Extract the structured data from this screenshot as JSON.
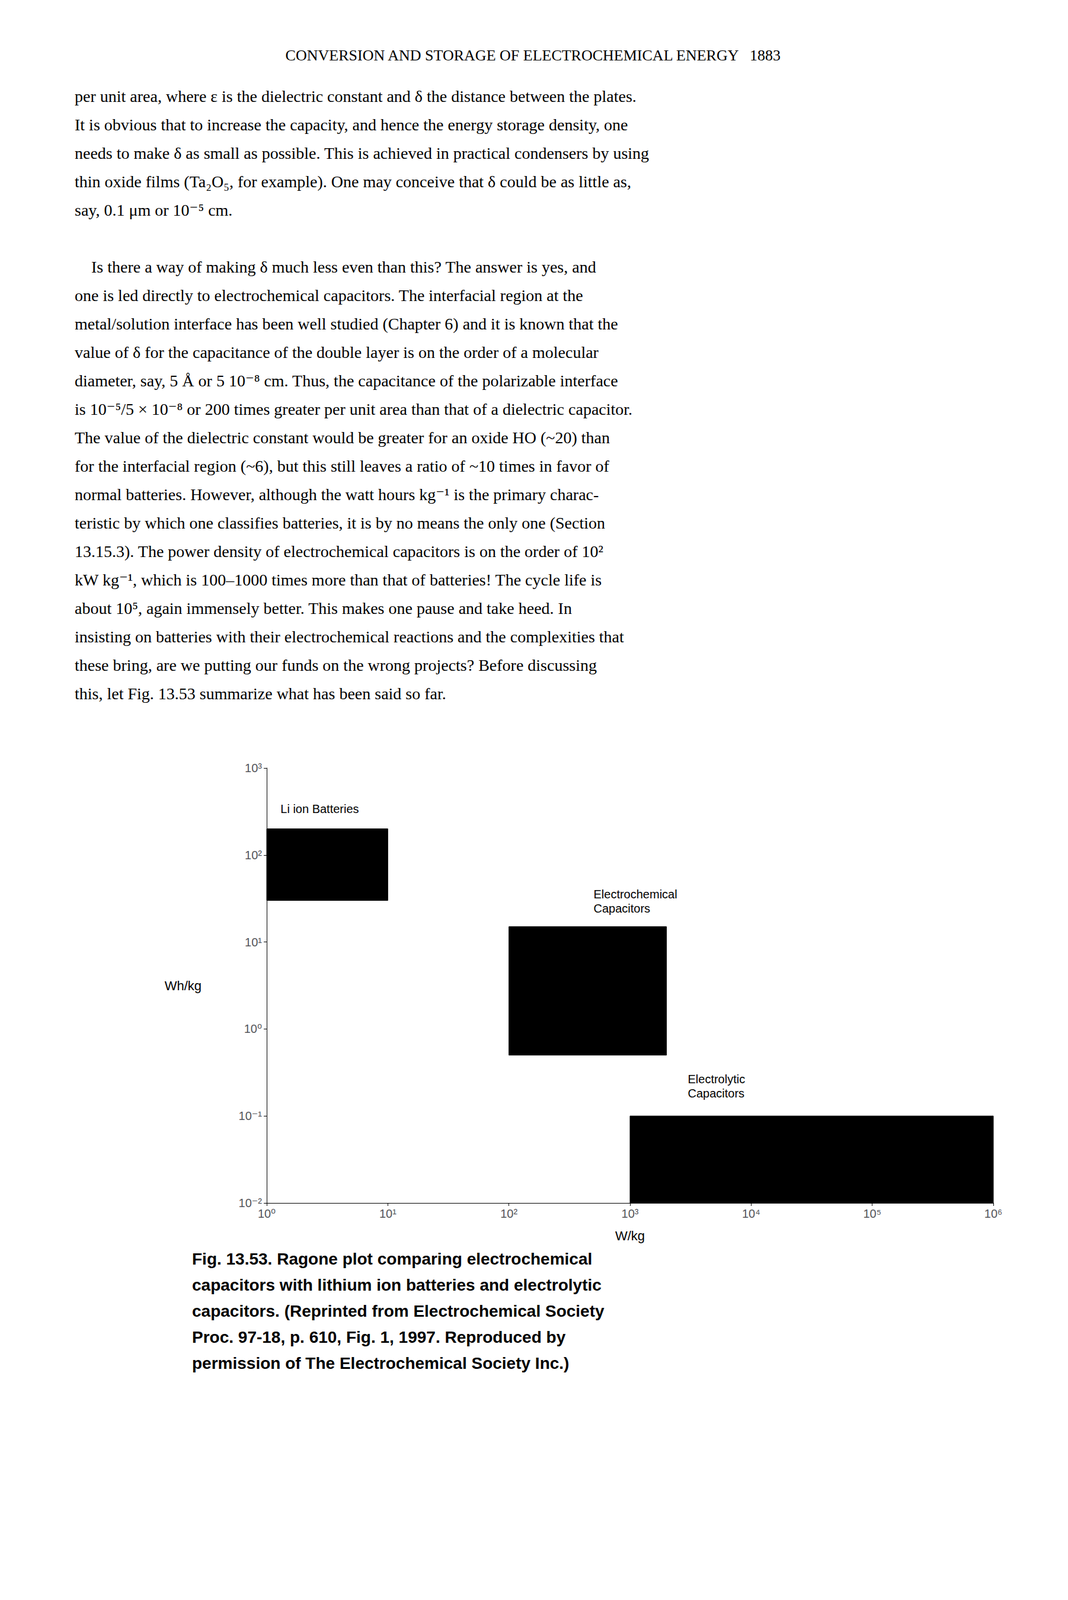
{
  "chart_data": {
    "type": "ragone",
    "header": "CONVERSION AND STORAGE OF ELECTROCHEMICAL ENERGY   1883",
    "body_text": [
      [
        "per unit area, where ε is the dielectric constant and δ the distance between the plates.",
        "It is obvious that to increase the capacity, and hence the energy storage density, one",
        "needs to make δ as small as possible. This is achieved in practical condensers by using",
        "thin oxide films (Ta₂O₅, for example). One may conceive that δ could be as little as,",
        "say, 0.1 μm or 10⁻⁵ cm."
      ],
      [
        "    Is there a way of making δ much less even than this? The answer is yes, and",
        "one is led directly to electrochemical capacitors. The interfacial region at the",
        "metal/solution interface has been well studied (Chapter 6) and it is known that the",
        "value of δ for the capacitance of the double layer is on the order of a molecular",
        "diameter, say, 5 Å or 5 10⁻⁸ cm. Thus, the capacitance of the polarizable interface",
        "is 10⁻⁵/5 × 10⁻⁸ or 200 times greater per unit area than that of a dielectric capacitor.",
        "The value of the dielectric constant would be greater for an oxide HO (~20) than",
        "for the interfacial region (~6), but this still leaves a ratio of ~10 times in favor of",
        "normal batteries. However, although the watt hours kg⁻¹ is the primary charac-",
        "teristic by which one classifies batteries, it is by no means the only one (Section",
        "13.15.3). The power density of electrochemical capacitors is on the order of 10²",
        "kW kg⁻¹, which is 100–1000 times more than that of batteries! The cycle life is",
        "about 10⁵, again immensely better. This makes one pause and take heed. In",
        "insisting on batteries with their electrochemical reactions and the complexities that",
        "these bring, are we putting our funds on the wrong projects? Before discussing",
        "this, let Fig. 13.53 summarize what has been said so far."
      ]
    ],
    "xlabel": "W/kg",
    "ylabel": "Wh/kg",
    "log": true,
    "grid": false,
    "xlim": [
      1,
      1000000
    ],
    "ylim": [
      0.01,
      1000
    ],
    "xticks": [
      {
        "value": 1,
        "label": "10⁰"
      },
      {
        "value": 10,
        "label": "10¹"
      },
      {
        "value": 100,
        "label": "10²"
      },
      {
        "value": 1000,
        "label": "10³"
      },
      {
        "value": 10000,
        "label": "10⁴"
      },
      {
        "value": 100000,
        "label": "10⁵"
      },
      {
        "value": 1000000,
        "label": "10⁶"
      }
    ],
    "yticks": [
      {
        "value": 0.01,
        "label": "10⁻²"
      },
      {
        "value": 0.1,
        "label": "10⁻¹"
      },
      {
        "value": 1,
        "label": "10⁰"
      },
      {
        "value": 10,
        "label": "10¹"
      },
      {
        "value": 100,
        "label": "10²"
      },
      {
        "value": 1000,
        "label": "10³"
      }
    ],
    "regions": [
      {
        "label": "Li ion Batteries",
        "x_min": 1,
        "x_max": 10,
        "y_min": 30,
        "y_max": 200,
        "color": "#000000",
        "label_x": 1.3,
        "label_y": 280
      },
      {
        "label": "Electrochemical\nCapacitors",
        "x_min": 100,
        "x_max": 2000,
        "y_min": 0.5,
        "y_max": 15,
        "color": "#000000",
        "label_x": 500,
        "label_y": 20
      },
      {
        "label": "Electrolytic\nCapacitors",
        "x_min": 1000,
        "x_max": 1000000,
        "y_min": 0.01,
        "y_max": 0.1,
        "color": "#000000",
        "label_x": 3000,
        "label_y": 0.15
      }
    ],
    "caption": [
      "Fig. 13.53. Ragone plot comparing electrochemical",
      "capacitors with lithium ion batteries and electrolytic",
      "capacitors. (Reprinted from Electrochemical Society",
      "Proc. 97-18, p. 610, Fig. 1, 1997. Reproduced by",
      "permission of The Electrochemical Society Inc.)"
    ]
  }
}
